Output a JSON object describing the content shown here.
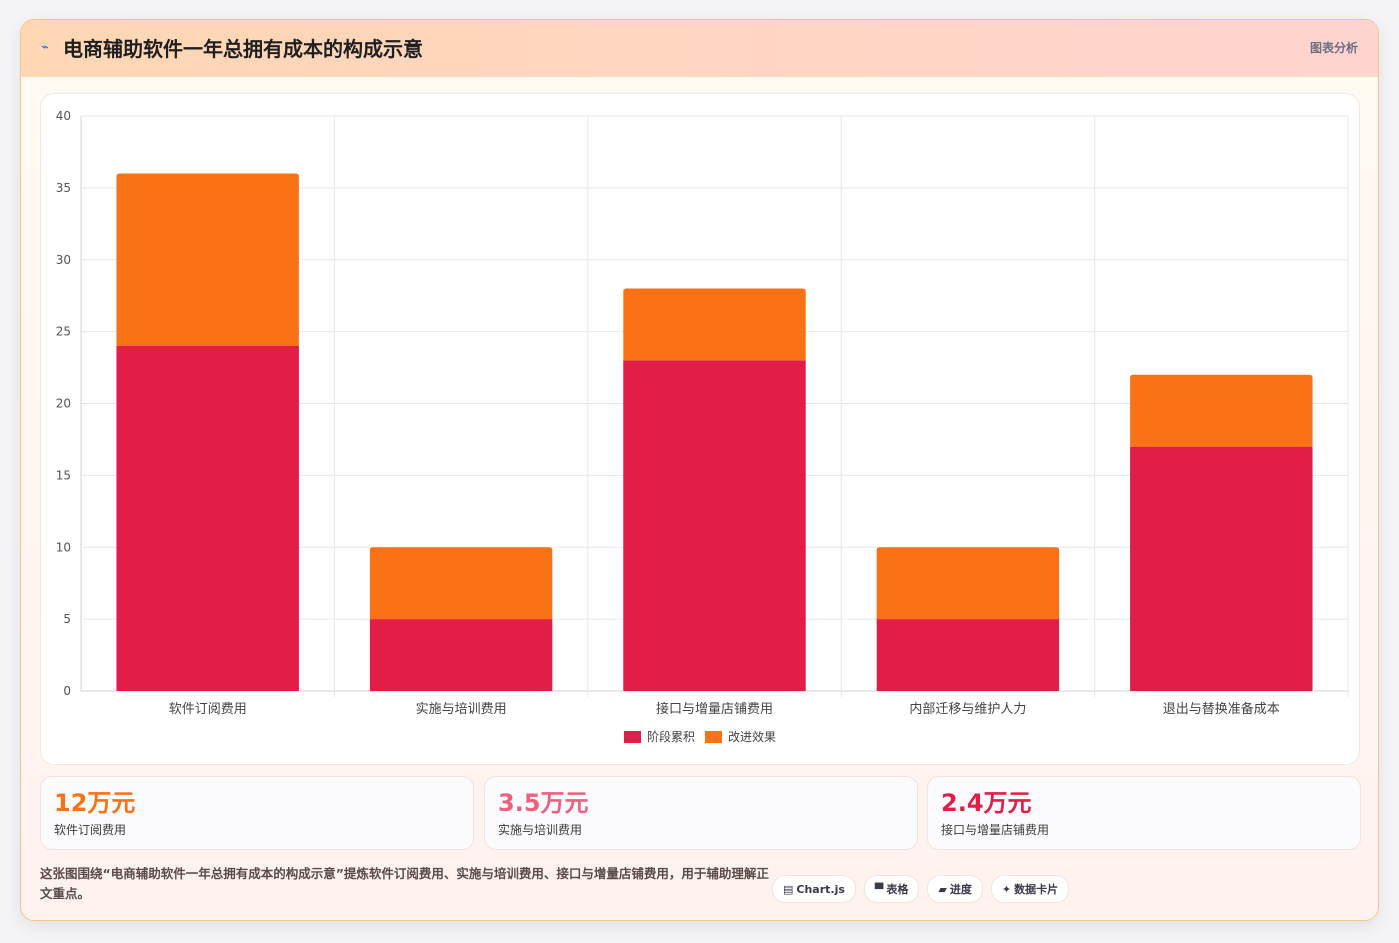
{
  "header": {
    "icon": "line-chart-icon",
    "title": "电商辅助软件一年总拥有成本的构成示意",
    "tag": "图表分析"
  },
  "colors": {
    "series1": "#e11d48",
    "series2": "#f97316",
    "stat1": "#f97316",
    "stat2": "#f0607e",
    "stat3": "#e11d48"
  },
  "chart_data": {
    "type": "bar",
    "stacked": true,
    "categories": [
      "软件订阅费用",
      "实施与培训费用",
      "接口与增量店铺费用",
      "内部迁移与维护人力",
      "退出与替换准备成本"
    ],
    "series": [
      {
        "name": "阶段累积",
        "values": [
          24,
          5,
          23,
          5,
          17
        ],
        "color": "#e11d48"
      },
      {
        "name": "改进效果",
        "values": [
          12,
          5,
          5,
          5,
          5
        ],
        "color": "#f97316"
      }
    ],
    "ylim": [
      0,
      40
    ],
    "yticks": [
      0,
      5,
      10,
      15,
      20,
      25,
      30,
      35,
      40
    ],
    "grid": true,
    "legend_position": "bottom"
  },
  "stats": [
    {
      "value": "12万元",
      "label": "软件订阅费用"
    },
    {
      "value": "3.5万元",
      "label": "实施与培训费用"
    },
    {
      "value": "2.4万元",
      "label": "接口与增量店铺费用"
    }
  ],
  "description": "这张图围绕“电商辅助软件一年总拥有成本的构成示意”提炼软件订阅费用、实施与培训费用、接口与增量店铺费用，用于辅助理解正文重点。",
  "chips": [
    {
      "icon": "▤",
      "label": "Chart.js"
    },
    {
      "icon": "▀",
      "label": "表格"
    },
    {
      "icon": "▰",
      "label": "进度"
    },
    {
      "icon": "✦",
      "label": "数据卡片"
    }
  ]
}
